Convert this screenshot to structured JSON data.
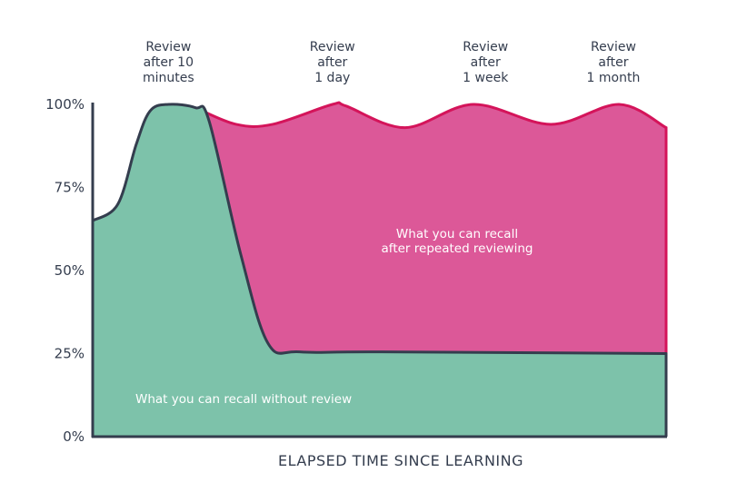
{
  "chart_data": {
    "type": "area",
    "title": "",
    "xlabel": "ELAPSED TIME SINCE LEARNING",
    "ylabel": "",
    "ylim": [
      0,
      100
    ],
    "xlim": [
      0,
      100
    ],
    "yticks": [
      "0%",
      "25%",
      "50%",
      "75%",
      "100%"
    ],
    "ytick_values": [
      0,
      25,
      50,
      75,
      100
    ],
    "grid": false,
    "legend": "none",
    "series": [
      {
        "color": "#7dc2aa",
        "stroke": "#343d4e",
        "x": [
          0,
          4.4,
          7.6,
          10,
          13.2,
          17.9,
          20.3,
          25.8,
          30.6,
          36.1,
          50.4,
          100
        ],
        "y": [
          65,
          70,
          88,
          98,
          100,
          99,
          95,
          55,
          28,
          25.5,
          25.5,
          25
        ]
      },
      {
        "color": "#dc5898",
        "stroke": "#d4145a",
        "x": [
          17.9,
          25,
          31.4,
          41.8,
          44.2,
          54.5,
          66.4,
          79.9,
          91.8,
          100
        ],
        "y": [
          99,
          94,
          94,
          100,
          99.5,
          93,
          100,
          94,
          100,
          93
        ]
      }
    ],
    "annotations": [
      {
        "lines": [
          "Review",
          "after 10",
          "minutes"
        ],
        "x": 13.2
      },
      {
        "lines": [
          "Review",
          "after",
          "1 day"
        ],
        "x": 41.8
      },
      {
        "lines": [
          "Review",
          "after",
          "1 week"
        ],
        "x": 68.5
      },
      {
        "lines": [
          "Review",
          "after",
          "1 month"
        ],
        "x": 90.8
      }
    ],
    "area_labels": {
      "repeated": [
        "What you can recall",
        "after repeated reviewing"
      ],
      "without": "What you can recall without review"
    }
  }
}
